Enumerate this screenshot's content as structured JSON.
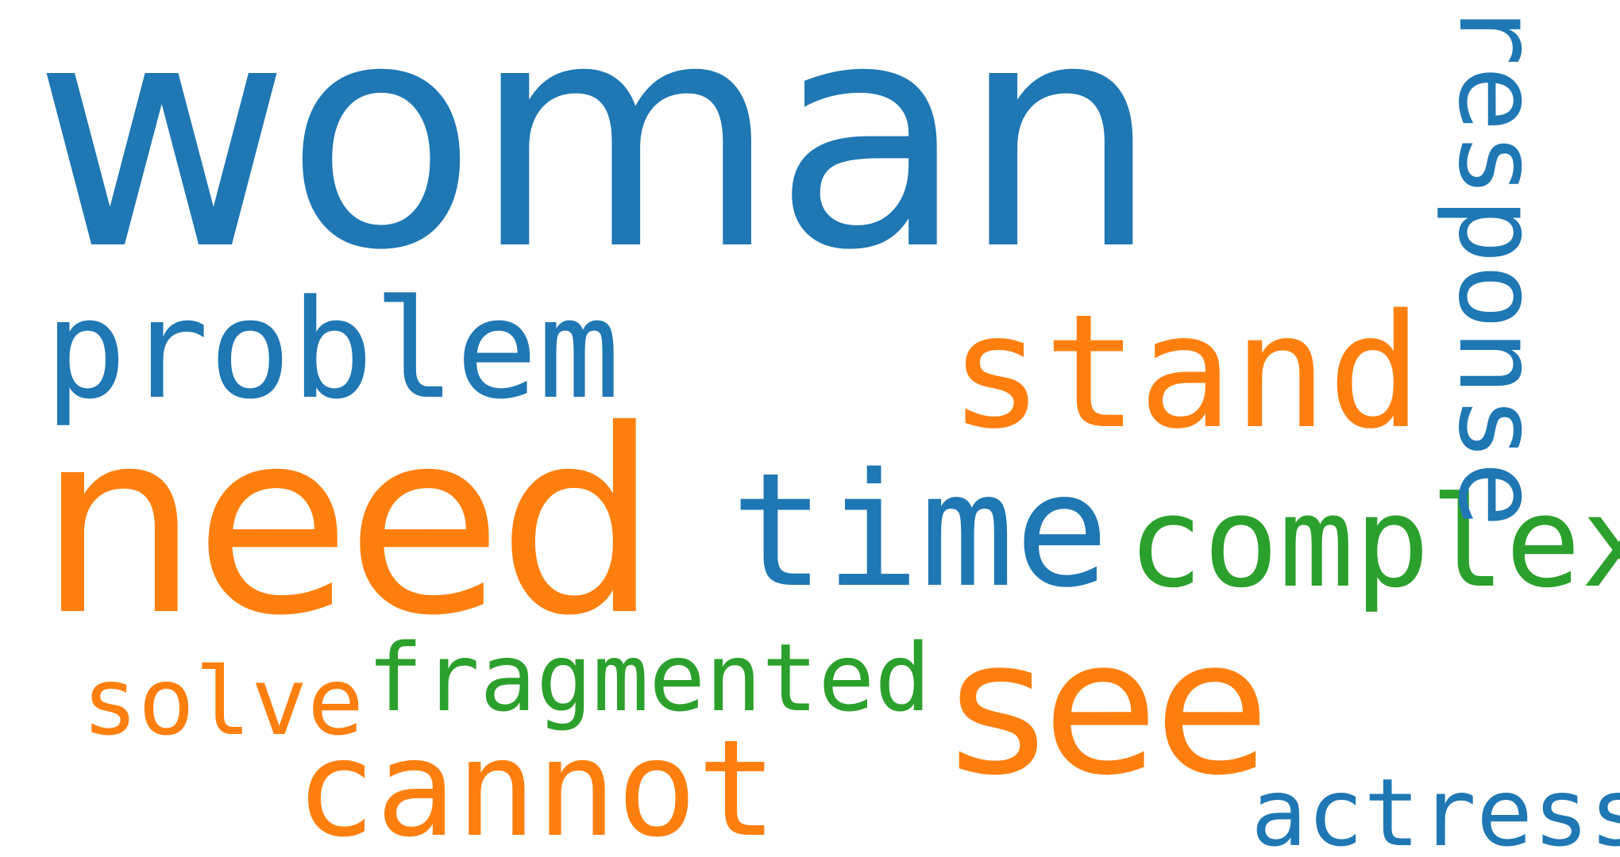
{
  "word_cloud": {
    "colors": {
      "blue": "#1f77b4",
      "orange": "#ff7f0e",
      "green": "#2ca02c",
      "background": "#ffffff"
    },
    "words": {
      "woman": "woman",
      "need": "need",
      "problem": "problem",
      "stand": "stand",
      "time": "time",
      "complex": "complex",
      "see": "see",
      "fragmented": "fragmented",
      "solve": "solve",
      "cannot": "cannot",
      "actress": "actress",
      "response": "response"
    }
  }
}
